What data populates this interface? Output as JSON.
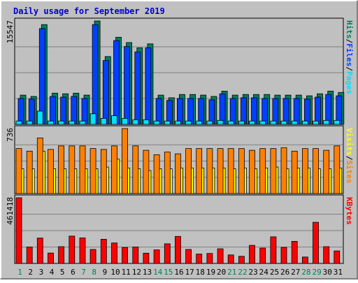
{
  "title": "Daily usage for September 2019",
  "colors": {
    "background": "#c0c0c0",
    "border_light": "#ffffff",
    "border_dark": "#808080",
    "title": "#0000cc",
    "hits": "#00805c",
    "files": "#0040ff",
    "pages": "#00e0ff",
    "visits": "#ffff00",
    "sites": "#ff8000",
    "kbytes": "#ff0000",
    "day_weekday": "#000000",
    "day_weekend": "#00805c"
  },
  "chart_data": {
    "type": "bar",
    "days": [
      "1",
      "2",
      "3",
      "4",
      "5",
      "6",
      "7",
      "8",
      "9",
      "10",
      "11",
      "12",
      "13",
      "14",
      "15",
      "16",
      "17",
      "18",
      "19",
      "20",
      "21",
      "22",
      "23",
      "24",
      "25",
      "26",
      "27",
      "28",
      "29",
      "30",
      "31"
    ],
    "weekend_days": [
      "1",
      "7",
      "8",
      "14",
      "15",
      "21",
      "22",
      "28",
      "29"
    ],
    "panels": [
      {
        "id": "top",
        "max_label": "15547",
        "ymax": 15547,
        "legend": [
          "Pages",
          "Files",
          "Hits"
        ],
        "series": [
          {
            "name": "Hits",
            "color_key": "hits",
            "values": [
              4400,
              4200,
              15000,
              4700,
              4600,
              4700,
              4400,
              15547,
              10200,
              13100,
              12300,
              11500,
              12100,
              4400,
              4000,
              4500,
              4500,
              4400,
              4200,
              5000,
              4400,
              4500,
              4500,
              4500,
              4400,
              4400,
              4400,
              4300,
              4600,
              5000,
              4800
            ]
          },
          {
            "name": "Files",
            "color_key": "files",
            "values": [
              3900,
              3800,
              14400,
              4200,
              4100,
              4200,
              3900,
              15000,
              9600,
              12600,
              11700,
              10900,
              11500,
              3900,
              3600,
              3900,
              3900,
              3900,
              3700,
              4600,
              3900,
              4000,
              4000,
              3900,
              3900,
              3900,
              3900,
              3800,
              4100,
              4500,
              4300
            ]
          },
          {
            "name": "Pages",
            "color_key": "pages",
            "values": [
              500,
              500,
              2000,
              500,
              500,
              500,
              500,
              1600,
              900,
              1300,
              900,
              700,
              700,
              500,
              500,
              500,
              500,
              500,
              500,
              600,
              500,
              500,
              500,
              500,
              500,
              500,
              500,
              500,
              500,
              600,
              600
            ]
          }
        ]
      },
      {
        "id": "middle",
        "max_label": "736",
        "ymax": 736,
        "legend": [
          "Sites",
          "Visits"
        ],
        "series": [
          {
            "name": "Visits",
            "color_key": "visits",
            "values": [
              280,
              280,
              480,
              280,
              280,
              280,
              280,
              280,
              300,
              390,
              290,
              280,
              260,
              280,
              280,
              290,
              290,
              290,
              290,
              290,
              280,
              290,
              280,
              290,
              300,
              280,
              290,
              290,
              280,
              280,
              290
            ]
          },
          {
            "name": "Sites",
            "color_key": "sites",
            "values": [
              510,
              480,
              630,
              500,
              540,
              540,
              540,
              510,
              500,
              540,
              736,
              540,
              490,
              440,
              470,
              450,
              510,
              510,
              510,
              510,
              510,
              510,
              490,
              510,
              510,
              520,
              480,
              510,
              510,
              490,
              540
            ]
          }
        ]
      },
      {
        "id": "bottom",
        "max_label": "461418",
        "ymax": 461418,
        "legend": [
          "KBytes"
        ],
        "series": [
          {
            "name": "KBytes",
            "color_key": "kbytes",
            "values": [
              461418,
              116000,
              178000,
              73000,
              118000,
              192000,
              179000,
              98000,
              170000,
              144000,
              112000,
              116000,
              72000,
              95000,
              138000,
              190000,
              98000,
              66000,
              70000,
              103000,
              60000,
              50000,
              127000,
              108000,
              187000,
              113000,
              155000,
              45000,
              289000,
              118000,
              88000
            ]
          }
        ]
      }
    ]
  }
}
